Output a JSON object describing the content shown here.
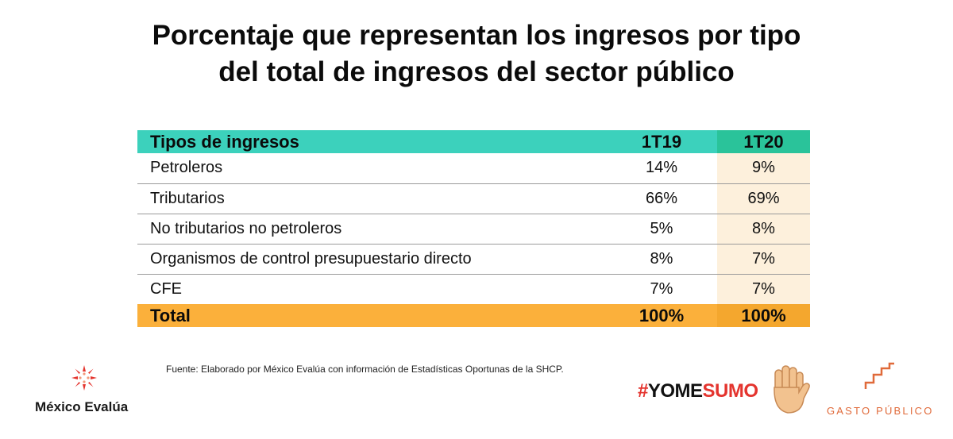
{
  "title": {
    "line1": "Porcentaje que representan los ingresos por tipo",
    "line2": "del total de ingresos del sector público"
  },
  "table": {
    "headers": [
      "Tipos de ingresos",
      "1T19",
      "1T20"
    ],
    "rows": [
      [
        "Petroleros",
        "14%",
        "9%"
      ],
      [
        "Tributarios",
        "66%",
        "69%"
      ],
      [
        "No tributarios no petroleros",
        "5%",
        "8%"
      ],
      [
        "Organismos de control presupuestario directo",
        "8%",
        "7%"
      ],
      [
        "CFE",
        "7%",
        "7%"
      ]
    ],
    "total": [
      "Total",
      "100%",
      "100%"
    ]
  },
  "source": "Fuente: Elaborado por México Evalúa con información de Estadísticas Oportunas de la SHCP.",
  "logos": {
    "mexico_evalua": "México Evalúa",
    "yomesumo_hash": "#",
    "yomesumo_yome": "YOME",
    "yomesumo_sumo": "SUMO",
    "gasto_publico": "GASTO PÚBLICO"
  },
  "colors": {
    "header_teal": "#3cd1bc",
    "total_orange": "#fbb03b",
    "highlight_column": "#fdf0dc",
    "brand_red": "#e4342e",
    "gasto_orange": "#e06a3a"
  },
  "icons": [
    "mexico-evalua-star-icon",
    "raised-hand-icon",
    "gasto-publico-stairs-icon"
  ]
}
